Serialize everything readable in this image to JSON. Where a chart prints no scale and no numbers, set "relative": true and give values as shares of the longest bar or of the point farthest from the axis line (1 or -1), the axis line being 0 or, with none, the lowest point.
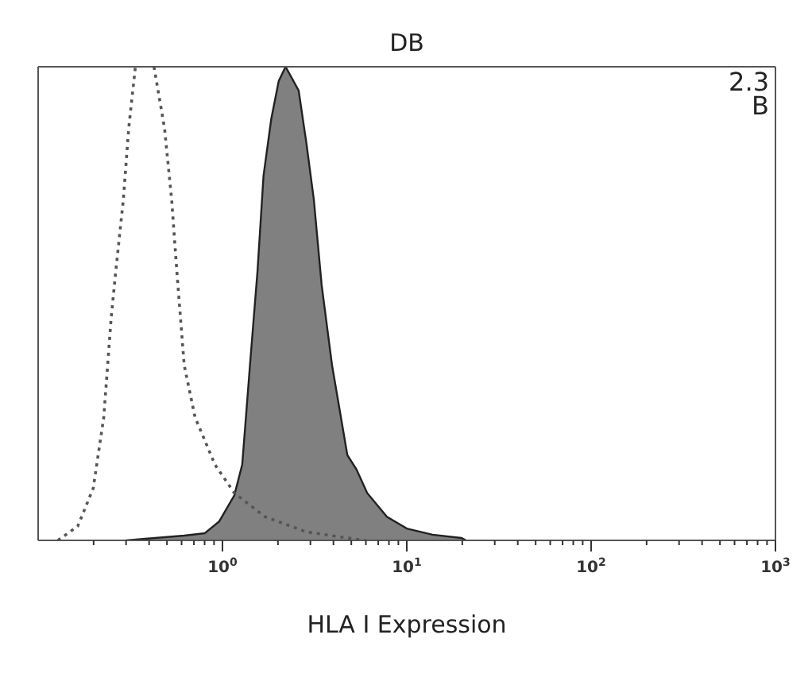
{
  "chart_data": {
    "type": "area",
    "title": "DB",
    "xlabel": "HLA I Expression",
    "annotations": [
      "2.3",
      "B"
    ],
    "relative": true,
    "log": "x",
    "marker": "none",
    "xlim": [
      0.1,
      1000
    ],
    "xticks": [
      {
        "value": 0.2,
        "label": null
      },
      {
        "value": 0.3,
        "label": null
      },
      {
        "value": 0.4,
        "label": null
      },
      {
        "value": 0.5,
        "label": null
      },
      {
        "value": 0.6,
        "label": null
      },
      {
        "value": 0.7,
        "label": null
      },
      {
        "value": 0.8,
        "label": null
      },
      {
        "value": 0.9,
        "label": null
      },
      {
        "value": 1,
        "label": "10$^{0}$"
      },
      {
        "value": 2,
        "label": null
      },
      {
        "value": 3,
        "label": null
      },
      {
        "value": 4,
        "label": null
      },
      {
        "value": 5,
        "label": null
      },
      {
        "value": 6,
        "label": null
      },
      {
        "value": 7,
        "label": null
      },
      {
        "value": 8,
        "label": null
      },
      {
        "value": 9,
        "label": null
      },
      {
        "value": 10,
        "label": "10$^{1}$"
      },
      {
        "value": 20,
        "label": null
      },
      {
        "value": 30,
        "label": null
      },
      {
        "value": 40,
        "label": null
      },
      {
        "value": 50,
        "label": null
      },
      {
        "value": 60,
        "label": null
      },
      {
        "value": 70,
        "label": null
      },
      {
        "value": 80,
        "label": null
      },
      {
        "value": 90,
        "label": null
      },
      {
        "value": 100,
        "label": "10$^{2}$"
      },
      {
        "value": 200,
        "label": null
      },
      {
        "value": 300,
        "label": null
      },
      {
        "value": 400,
        "label": null
      },
      {
        "value": 500,
        "label": null
      },
      {
        "value": 600,
        "label": null
      },
      {
        "value": 700,
        "label": null
      },
      {
        "value": 800,
        "label": null
      },
      {
        "value": 900,
        "label": null
      },
      {
        "value": 1000,
        "label": "10$^{3}$"
      }
    ],
    "series": [
      {
        "type": "line",
        "line_style": "dotted",
        "color": "#555555",
        "x": [
          0.128,
          0.164,
          0.199,
          0.227,
          0.249,
          0.264,
          0.29,
          0.31,
          0.337,
          0.38,
          0.425,
          0.485,
          0.53,
          0.565,
          0.62,
          0.71,
          0.91,
          1.16,
          1.7,
          2.85,
          4.76,
          6.0
        ],
        "values": [
          0,
          0.03,
          0.11,
          0.26,
          0.47,
          0.57,
          0.72,
          0.87,
          1,
          null,
          1,
          0.87,
          0.72,
          0.57,
          0.37,
          0.26,
          0.16,
          0.1,
          0.05,
          0.018,
          0.005,
          0
        ]
      },
      {
        "type": "area",
        "color": "#808080",
        "x": [
          0.3,
          0.43,
          0.62,
          0.8,
          0.96,
          1.16,
          1.28,
          1.41,
          1.55,
          1.67,
          1.84,
          2.02,
          2.2,
          2.59,
          2.85,
          3.13,
          3.45,
          3.93,
          4.76,
          5.33,
          6.1,
          7.8,
          10,
          13.8,
          19.8,
          21
        ],
        "values": [
          0,
          0.005,
          0.01,
          0.015,
          0.04,
          0.095,
          0.16,
          0.37,
          0.57,
          0.77,
          0.89,
          0.97,
          1,
          0.95,
          0.84,
          0.72,
          0.54,
          0.37,
          0.18,
          0.15,
          0.1,
          0.05,
          0.025,
          0.012,
          0.005,
          0
        ]
      }
    ]
  }
}
